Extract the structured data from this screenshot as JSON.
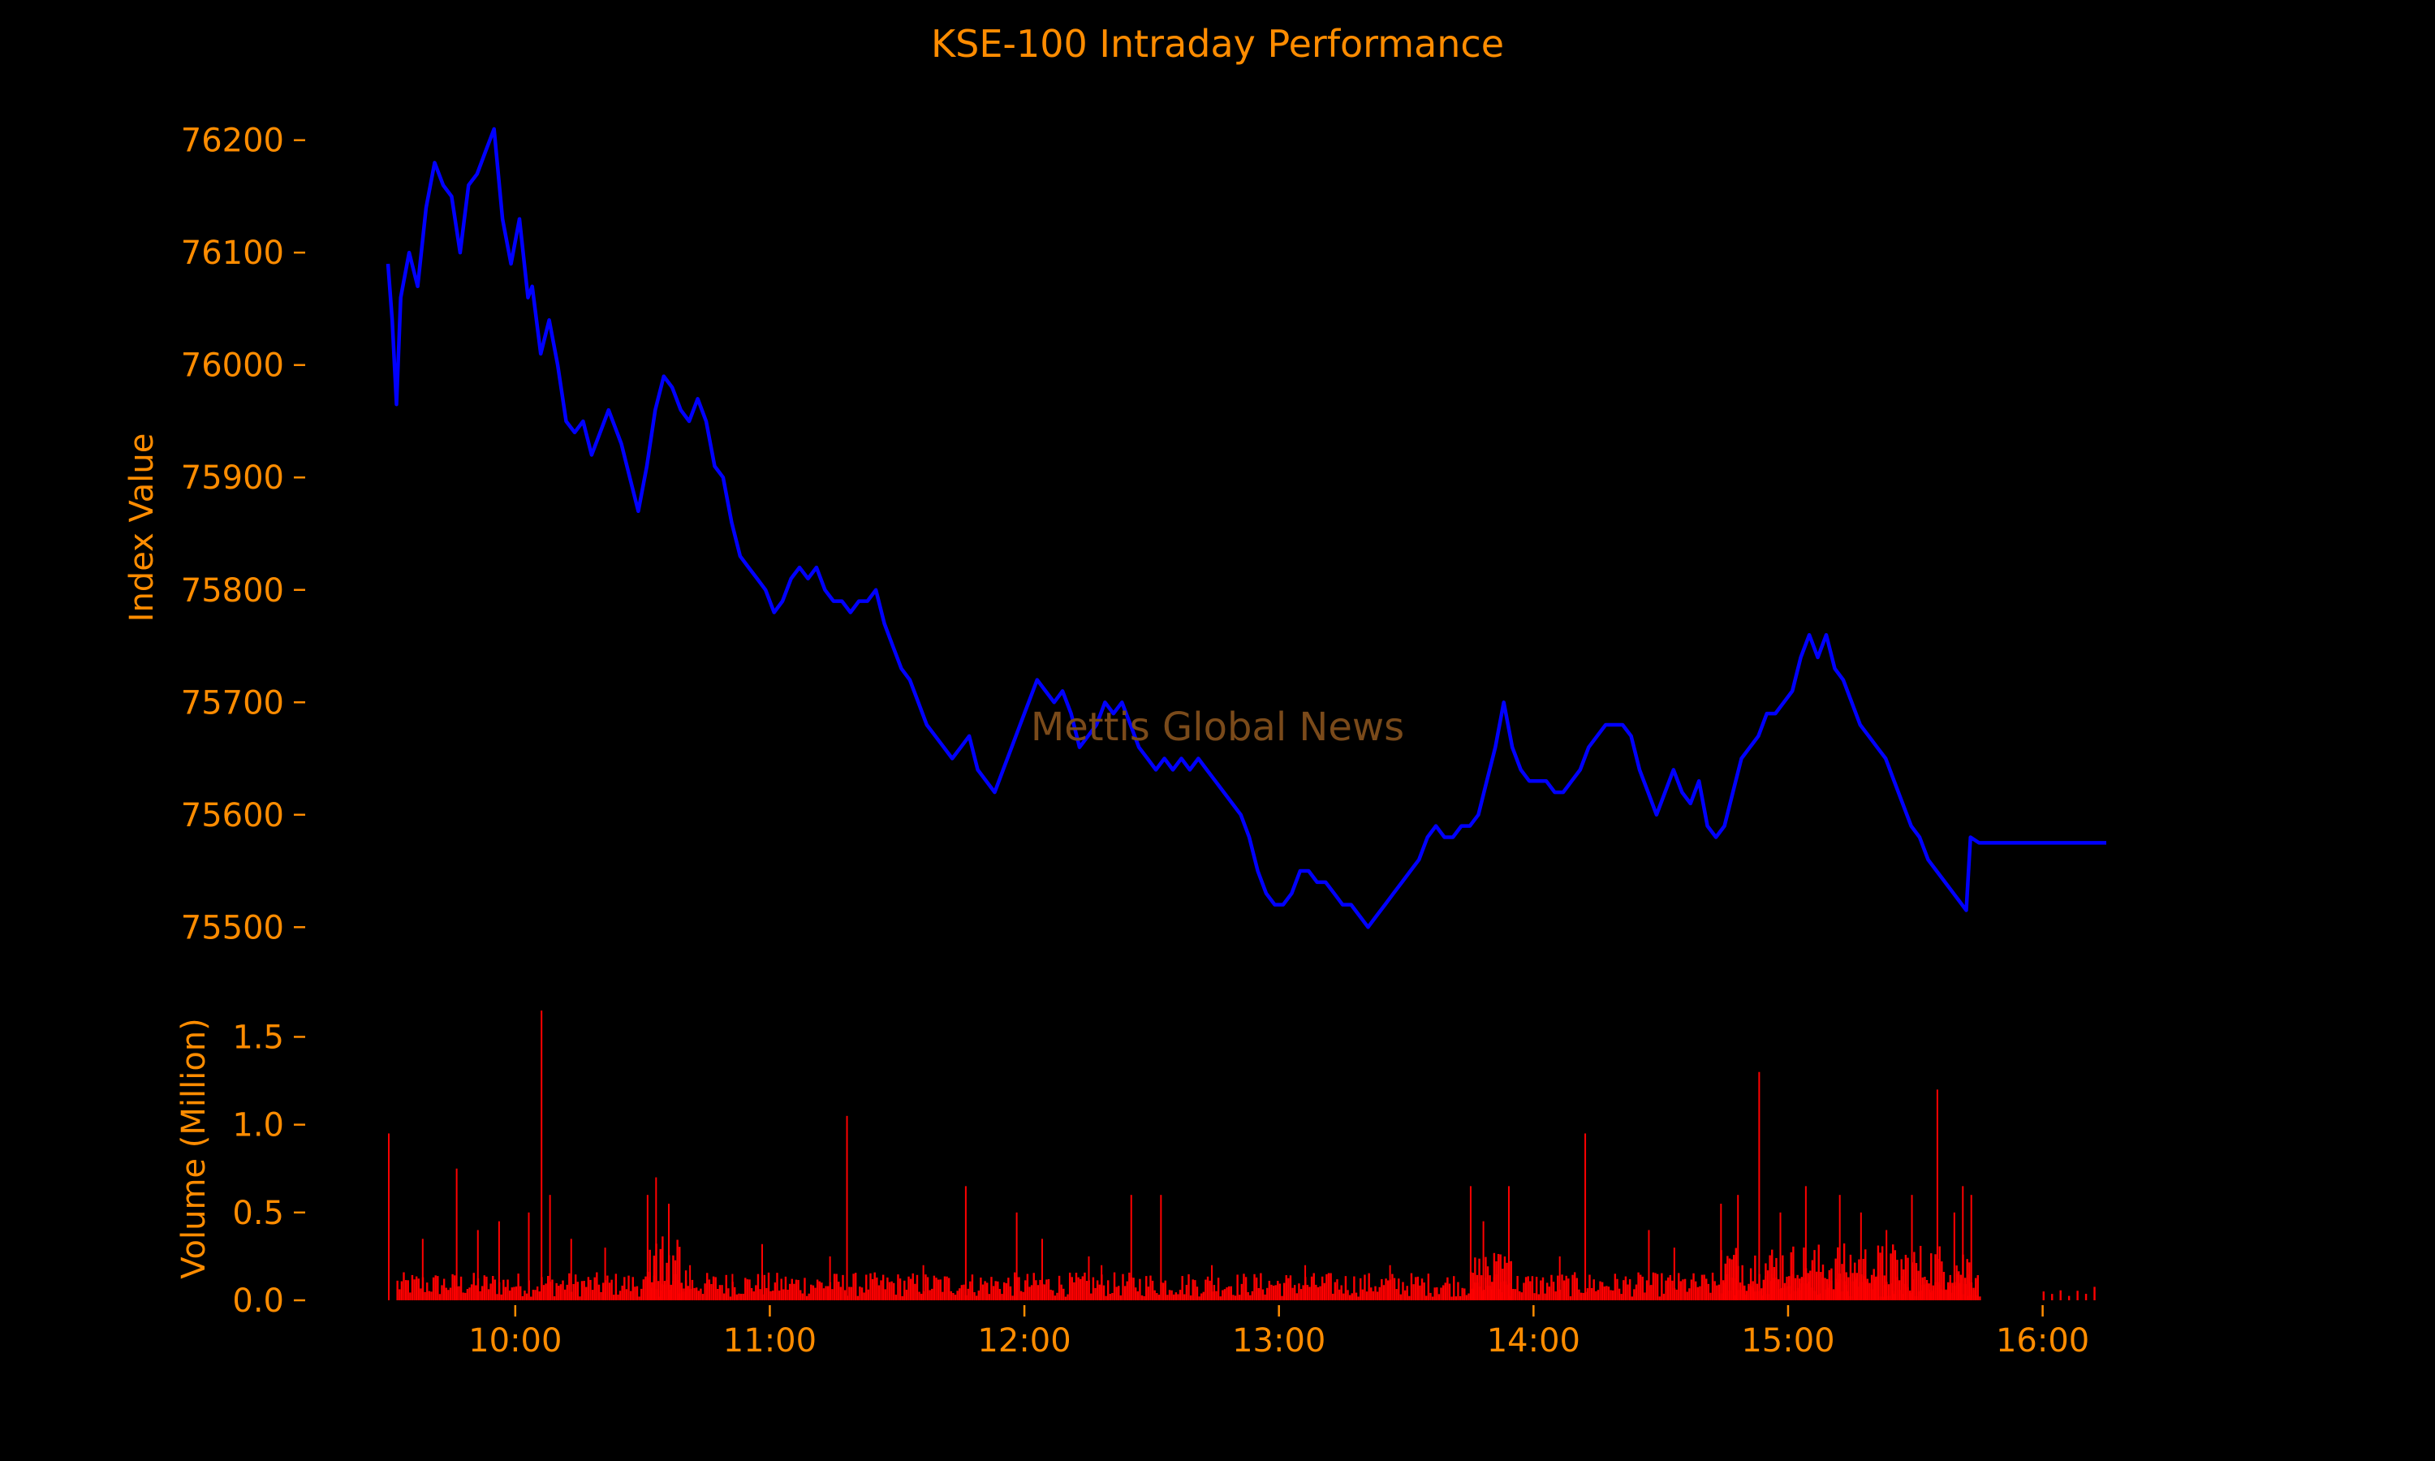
{
  "chart_data": {
    "type": "line",
    "title": "KSE-100 Intraday Performance",
    "watermark": "Mettis Global News",
    "colors": {
      "background": "#000000",
      "text": "#FF8C00",
      "index_line": "#0000FF",
      "volume_bars": "#FF0000",
      "watermark": "#7a4a1a"
    },
    "x_axis": {
      "ticks": [
        "10:00",
        "11:00",
        "12:00",
        "13:00",
        "14:00",
        "15:00",
        "16:00"
      ],
      "range": [
        "09:30",
        "16:15"
      ]
    },
    "index_panel": {
      "ylabel": "Index Value",
      "yticks": [
        "76200",
        "76100",
        "76000",
        "75900",
        "75800",
        "75700",
        "75600",
        "75500"
      ],
      "ylim": [
        75480,
        76220
      ],
      "series": [
        {
          "values": [
            [
              "09:30",
              76090
            ],
            [
              "09:31",
              76040
            ],
            [
              "09:32",
              75965
            ],
            [
              "09:33",
              76060
            ],
            [
              "09:35",
              76100
            ],
            [
              "09:37",
              76070
            ],
            [
              "09:39",
              76140
            ],
            [
              "09:41",
              76180
            ],
            [
              "09:43",
              76160
            ],
            [
              "09:45",
              76150
            ],
            [
              "09:47",
              76100
            ],
            [
              "09:49",
              76160
            ],
            [
              "09:51",
              76170
            ],
            [
              "09:53",
              76190
            ],
            [
              "09:55",
              76210
            ],
            [
              "09:57",
              76130
            ],
            [
              "09:59",
              76090
            ],
            [
              "10:01",
              76130
            ],
            [
              "10:03",
              76060
            ],
            [
              "10:04",
              76070
            ],
            [
              "10:06",
              76010
            ],
            [
              "10:08",
              76040
            ],
            [
              "10:10",
              76000
            ],
            [
              "10:12",
              75950
            ],
            [
              "10:14",
              75940
            ],
            [
              "10:16",
              75950
            ],
            [
              "10:18",
              75920
            ],
            [
              "10:20",
              75940
            ],
            [
              "10:22",
              75960
            ],
            [
              "10:25",
              75930
            ],
            [
              "10:27",
              75900
            ],
            [
              "10:29",
              75870
            ],
            [
              "10:31",
              75910
            ],
            [
              "10:33",
              75960
            ],
            [
              "10:35",
              75990
            ],
            [
              "10:37",
              75980
            ],
            [
              "10:39",
              75960
            ],
            [
              "10:41",
              75950
            ],
            [
              "10:43",
              75970
            ],
            [
              "10:45",
              75950
            ],
            [
              "10:47",
              75910
            ],
            [
              "10:49",
              75900
            ],
            [
              "10:51",
              75860
            ],
            [
              "10:53",
              75830
            ],
            [
              "10:55",
              75820
            ],
            [
              "10:57",
              75810
            ],
            [
              "10:59",
              75800
            ],
            [
              "11:01",
              75780
            ],
            [
              "11:03",
              75790
            ],
            [
              "11:05",
              75810
            ],
            [
              "11:07",
              75820
            ],
            [
              "11:09",
              75810
            ],
            [
              "11:11",
              75820
            ],
            [
              "11:13",
              75800
            ],
            [
              "11:15",
              75790
            ],
            [
              "11:17",
              75790
            ],
            [
              "11:19",
              75780
            ],
            [
              "11:21",
              75790
            ],
            [
              "11:23",
              75790
            ],
            [
              "11:25",
              75800
            ],
            [
              "11:27",
              75770
            ],
            [
              "11:29",
              75750
            ],
            [
              "11:31",
              75730
            ],
            [
              "11:33",
              75720
            ],
            [
              "11:35",
              75700
            ],
            [
              "11:37",
              75680
            ],
            [
              "11:39",
              75670
            ],
            [
              "11:41",
              75660
            ],
            [
              "11:43",
              75650
            ],
            [
              "11:45",
              75660
            ],
            [
              "11:47",
              75670
            ],
            [
              "11:49",
              75640
            ],
            [
              "11:51",
              75630
            ],
            [
              "11:53",
              75620
            ],
            [
              "11:55",
              75640
            ],
            [
              "11:57",
              75660
            ],
            [
              "11:59",
              75680
            ],
            [
              "12:01",
              75700
            ],
            [
              "12:03",
              75720
            ],
            [
              "12:05",
              75710
            ],
            [
              "12:07",
              75700
            ],
            [
              "12:09",
              75710
            ],
            [
              "12:11",
              75690
            ],
            [
              "12:13",
              75660
            ],
            [
              "12:15",
              75670
            ],
            [
              "12:17",
              75680
            ],
            [
              "12:19",
              75700
            ],
            [
              "12:21",
              75690
            ],
            [
              "12:23",
              75700
            ],
            [
              "12:25",
              75680
            ],
            [
              "12:27",
              75660
            ],
            [
              "12:29",
              75650
            ],
            [
              "12:31",
              75640
            ],
            [
              "12:33",
              75650
            ],
            [
              "12:35",
              75640
            ],
            [
              "12:37",
              75650
            ],
            [
              "12:39",
              75640
            ],
            [
              "12:41",
              75650
            ],
            [
              "12:43",
              75640
            ],
            [
              "12:45",
              75630
            ],
            [
              "12:47",
              75620
            ],
            [
              "12:49",
              75610
            ],
            [
              "12:51",
              75600
            ],
            [
              "12:53",
              75580
            ],
            [
              "12:55",
              75550
            ],
            [
              "12:57",
              75530
            ],
            [
              "12:59",
              75520
            ],
            [
              "13:01",
              75520
            ],
            [
              "13:03",
              75530
            ],
            [
              "13:05",
              75550
            ],
            [
              "13:07",
              75550
            ],
            [
              "13:09",
              75540
            ],
            [
              "13:11",
              75540
            ],
            [
              "13:13",
              75530
            ],
            [
              "13:15",
              75520
            ],
            [
              "13:17",
              75520
            ],
            [
              "13:19",
              75510
            ],
            [
              "13:21",
              75500
            ],
            [
              "13:23",
              75510
            ],
            [
              "13:25",
              75520
            ],
            [
              "13:27",
              75530
            ],
            [
              "13:29",
              75540
            ],
            [
              "13:31",
              75550
            ],
            [
              "13:33",
              75560
            ],
            [
              "13:35",
              75580
            ],
            [
              "13:37",
              75590
            ],
            [
              "13:39",
              75580
            ],
            [
              "13:41",
              75580
            ],
            [
              "13:43",
              75590
            ],
            [
              "13:45",
              75590
            ],
            [
              "13:47",
              75600
            ],
            [
              "13:49",
              75630
            ],
            [
              "13:51",
              75660
            ],
            [
              "13:53",
              75700
            ],
            [
              "13:55",
              75660
            ],
            [
              "13:57",
              75640
            ],
            [
              "13:59",
              75630
            ],
            [
              "14:01",
              75630
            ],
            [
              "14:03",
              75630
            ],
            [
              "14:05",
              75620
            ],
            [
              "14:07",
              75620
            ],
            [
              "14:09",
              75630
            ],
            [
              "14:11",
              75640
            ],
            [
              "14:13",
              75660
            ],
            [
              "14:15",
              75670
            ],
            [
              "14:17",
              75680
            ],
            [
              "14:19",
              75680
            ],
            [
              "14:21",
              75680
            ],
            [
              "14:23",
              75670
            ],
            [
              "14:25",
              75640
            ],
            [
              "14:27",
              75620
            ],
            [
              "14:29",
              75600
            ],
            [
              "14:31",
              75620
            ],
            [
              "14:33",
              75640
            ],
            [
              "14:35",
              75620
            ],
            [
              "14:37",
              75610
            ],
            [
              "14:39",
              75630
            ],
            [
              "14:41",
              75590
            ],
            [
              "14:43",
              75580
            ],
            [
              "14:45",
              75590
            ],
            [
              "14:47",
              75620
            ],
            [
              "14:49",
              75650
            ],
            [
              "14:51",
              75660
            ],
            [
              "14:53",
              75670
            ],
            [
              "14:55",
              75690
            ],
            [
              "14:57",
              75690
            ],
            [
              "14:59",
              75700
            ],
            [
              "15:01",
              75710
            ],
            [
              "15:03",
              75740
            ],
            [
              "15:05",
              75760
            ],
            [
              "15:07",
              75740
            ],
            [
              "15:09",
              75760
            ],
            [
              "15:11",
              75730
            ],
            [
              "15:13",
              75720
            ],
            [
              "15:15",
              75700
            ],
            [
              "15:17",
              75680
            ],
            [
              "15:19",
              75670
            ],
            [
              "15:21",
              75660
            ],
            [
              "15:23",
              75650
            ],
            [
              "15:25",
              75630
            ],
            [
              "15:27",
              75610
            ],
            [
              "15:29",
              75590
            ],
            [
              "15:31",
              75580
            ],
            [
              "15:33",
              75560
            ],
            [
              "15:35",
              75550
            ],
            [
              "15:37",
              75540
            ],
            [
              "15:39",
              75530
            ],
            [
              "15:41",
              75520
            ],
            [
              "15:42",
              75515
            ],
            [
              "15:43",
              75580
            ],
            [
              "15:45",
              75575
            ],
            [
              "16:15",
              75575
            ]
          ]
        }
      ]
    },
    "volume_panel": {
      "ylabel": "Volume (Million)",
      "yticks": [
        "1.5",
        "1.0",
        "0.5",
        "0.0"
      ],
      "ylim": [
        0,
        1.65
      ],
      "spikes": [
        [
          "09:30",
          0.95
        ],
        [
          "09:38",
          0.35
        ],
        [
          "09:46",
          0.75
        ],
        [
          "09:51",
          0.4
        ],
        [
          "09:56",
          0.45
        ],
        [
          "10:03",
          0.5
        ],
        [
          "10:06",
          1.65
        ],
        [
          "10:08",
          0.6
        ],
        [
          "10:13",
          0.35
        ],
        [
          "10:21",
          0.3
        ],
        [
          "10:31",
          0.6
        ],
        [
          "10:33",
          0.7
        ],
        [
          "10:36",
          0.55
        ],
        [
          "10:41",
          0.2
        ],
        [
          "10:51",
          0.15
        ],
        [
          "10:58",
          0.32
        ],
        [
          "11:14",
          0.25
        ],
        [
          "11:18",
          1.05
        ],
        [
          "11:36",
          0.2
        ],
        [
          "11:46",
          0.65
        ],
        [
          "11:58",
          0.5
        ],
        [
          "12:04",
          0.35
        ],
        [
          "12:15",
          0.25
        ],
        [
          "12:18",
          0.2
        ],
        [
          "12:25",
          0.6
        ],
        [
          "12:32",
          0.6
        ],
        [
          "12:44",
          0.2
        ],
        [
          "13:06",
          0.2
        ],
        [
          "13:26",
          0.2
        ],
        [
          "13:45",
          0.65
        ],
        [
          "13:48",
          0.45
        ],
        [
          "13:54",
          0.65
        ],
        [
          "14:06",
          0.25
        ],
        [
          "14:12",
          0.95
        ],
        [
          "14:27",
          0.4
        ],
        [
          "14:33",
          0.3
        ],
        [
          "14:44",
          0.55
        ],
        [
          "14:48",
          0.6
        ],
        [
          "14:53",
          1.3
        ],
        [
          "14:58",
          0.5
        ],
        [
          "15:04",
          0.65
        ],
        [
          "15:12",
          0.6
        ],
        [
          "15:17",
          0.5
        ],
        [
          "15:23",
          0.4
        ],
        [
          "15:29",
          0.6
        ],
        [
          "15:35",
          1.2
        ],
        [
          "15:39",
          0.5
        ],
        [
          "15:41",
          0.65
        ],
        [
          "15:43",
          0.6
        ]
      ]
    }
  }
}
